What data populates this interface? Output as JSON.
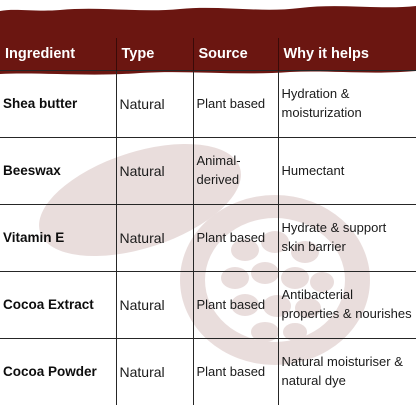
{
  "colors": {
    "header_band": "#6b1611",
    "header_text": "#ffffff",
    "body_text": "#1a1a1a",
    "grid_lines": "#262626"
  },
  "watermark_icon": "cocoa-pod-icon",
  "table": {
    "headers": {
      "ingredient": "Ingredient",
      "type": "Type",
      "source": "Source",
      "why": "Why it helps"
    },
    "rows": [
      {
        "ingredient": "Shea butter",
        "type": "Natural",
        "source": "Plant based",
        "why": "Hydration & moisturization"
      },
      {
        "ingredient": "Beeswax",
        "type": "Natural",
        "source": "Animal-derived",
        "why": "Humectant"
      },
      {
        "ingredient": "Vitamin E",
        "type": "Natural",
        "source": "Plant based",
        "why": "Hydrate & support skin barrier"
      },
      {
        "ingredient": "Cocoa Extract",
        "type": "Natural",
        "source": "Plant based",
        "why": "Antibacterial properties & nourishes"
      },
      {
        "ingredient": "Cocoa Powder",
        "type": "Natural",
        "source": "Plant based",
        "why": "Natural moisturiser & natural dye"
      }
    ]
  }
}
